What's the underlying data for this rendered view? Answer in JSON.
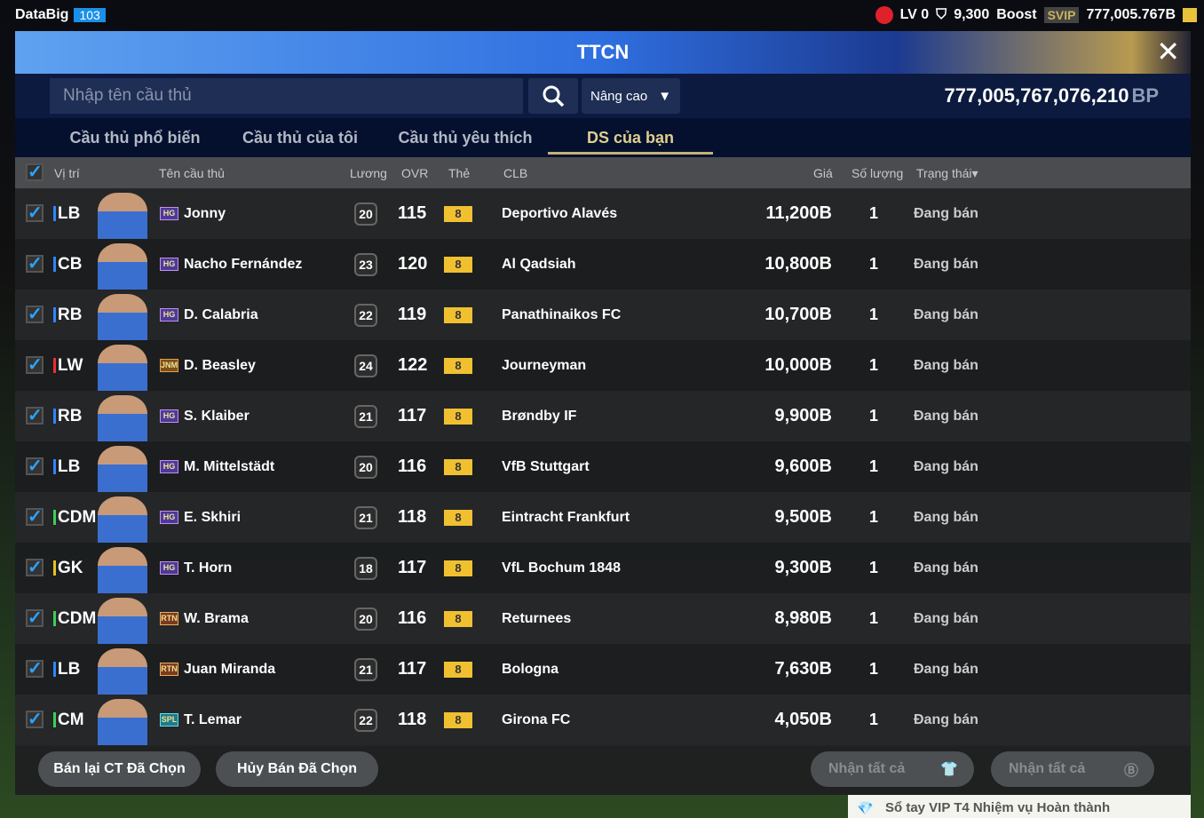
{
  "topbar": {
    "user": "DataBig",
    "level": "103",
    "lv": "LV 0",
    "tokens": "9,300",
    "boost": "Boost",
    "svip": "SVIP",
    "balance": "777,005.767B"
  },
  "title": "TTCN",
  "search": {
    "placeholder": "Nhập tên cầu thủ",
    "advanced": "Nâng cao",
    "bp_value": "777,005,767,076,210",
    "bp_unit": "BP"
  },
  "tabs": [
    "Cầu thủ phổ biến",
    "Cầu thủ của tôi",
    "Cầu thủ yêu thích",
    "DS của bạn"
  ],
  "active_tab": "DS của bạn",
  "columns": {
    "position": "Vị trí",
    "name": "Tên cầu thủ",
    "salary": "Lương",
    "ovr": "OVR",
    "card": "Thẻ",
    "club": "CLB",
    "price": "Giá",
    "qty": "Số lượng",
    "status": "Trạng thái▾"
  },
  "rows": [
    {
      "pos": "LB",
      "pos_color": "#2f86ff",
      "badge": "HG",
      "name": "Jonny",
      "salary": "20",
      "ovr": "115",
      "card": "8",
      "club": "Deportivo Alavés",
      "price": "11,200B",
      "qty": "1",
      "status": "Đang bán"
    },
    {
      "pos": "CB",
      "pos_color": "#2f86ff",
      "badge": "HG",
      "name": "Nacho Fernández",
      "salary": "23",
      "ovr": "120",
      "card": "8",
      "club": "Al Qadsiah",
      "price": "10,800B",
      "qty": "1",
      "status": "Đang bán"
    },
    {
      "pos": "RB",
      "pos_color": "#2f86ff",
      "badge": "HG",
      "name": "D. Calabria",
      "salary": "22",
      "ovr": "119",
      "card": "8",
      "club": "Panathinaikos FC",
      "price": "10,700B",
      "qty": "1",
      "status": "Đang bán"
    },
    {
      "pos": "LW",
      "pos_color": "#e83030",
      "badge": "JNM",
      "name": "D. Beasley",
      "salary": "24",
      "ovr": "122",
      "card": "8",
      "club": "Journeyman",
      "price": "10,000B",
      "qty": "1",
      "status": "Đang bán"
    },
    {
      "pos": "RB",
      "pos_color": "#2f86ff",
      "badge": "HG",
      "name": "S. Klaiber",
      "salary": "21",
      "ovr": "117",
      "card": "8",
      "club": "Brøndby IF",
      "price": "9,900B",
      "qty": "1",
      "status": "Đang bán"
    },
    {
      "pos": "LB",
      "pos_color": "#2f86ff",
      "badge": "HG",
      "name": "M. Mittelstädt",
      "salary": "20",
      "ovr": "116",
      "card": "8",
      "club": "VfB Stuttgart",
      "price": "9,600B",
      "qty": "1",
      "status": "Đang bán"
    },
    {
      "pos": "CDM",
      "pos_color": "#3ccf5a",
      "badge": "HG",
      "name": "E. Skhiri",
      "salary": "21",
      "ovr": "118",
      "card": "8",
      "club": "Eintracht Frankfurt",
      "price": "9,500B",
      "qty": "1",
      "status": "Đang bán"
    },
    {
      "pos": "GK",
      "pos_color": "#e8c020",
      "badge": "HG",
      "name": "T. Horn",
      "salary": "18",
      "ovr": "117",
      "card": "8",
      "club": "VfL Bochum 1848",
      "price": "9,300B",
      "qty": "1",
      "status": "Đang bán"
    },
    {
      "pos": "CDM",
      "pos_color": "#3ccf5a",
      "badge": "RTN",
      "name": "W. Brama",
      "salary": "20",
      "ovr": "116",
      "card": "8",
      "club": "Returnees",
      "price": "8,980B",
      "qty": "1",
      "status": "Đang bán"
    },
    {
      "pos": "LB",
      "pos_color": "#2f86ff",
      "badge": "RTN",
      "name": "Juan Miranda",
      "salary": "21",
      "ovr": "117",
      "card": "8",
      "club": "Bologna",
      "price": "7,630B",
      "qty": "1",
      "status": "Đang bán"
    },
    {
      "pos": "CM",
      "pos_color": "#3ccf5a",
      "badge": "SPL",
      "name": "T. Lemar",
      "salary": "22",
      "ovr": "118",
      "card": "8",
      "club": "Girona FC",
      "price": "4,050B",
      "qty": "1",
      "status": "Đang bán"
    }
  ],
  "footer": {
    "resell": "Bán lại CT Đã Chọn",
    "cancel": "Hủy Bán Đã Chọn",
    "claim_all_1": "Nhận tất cả",
    "claim_all_2": "Nhận tất cả"
  },
  "notification": "Sổ tay VIP T4 Nhiệm vụ Hoàn thành"
}
